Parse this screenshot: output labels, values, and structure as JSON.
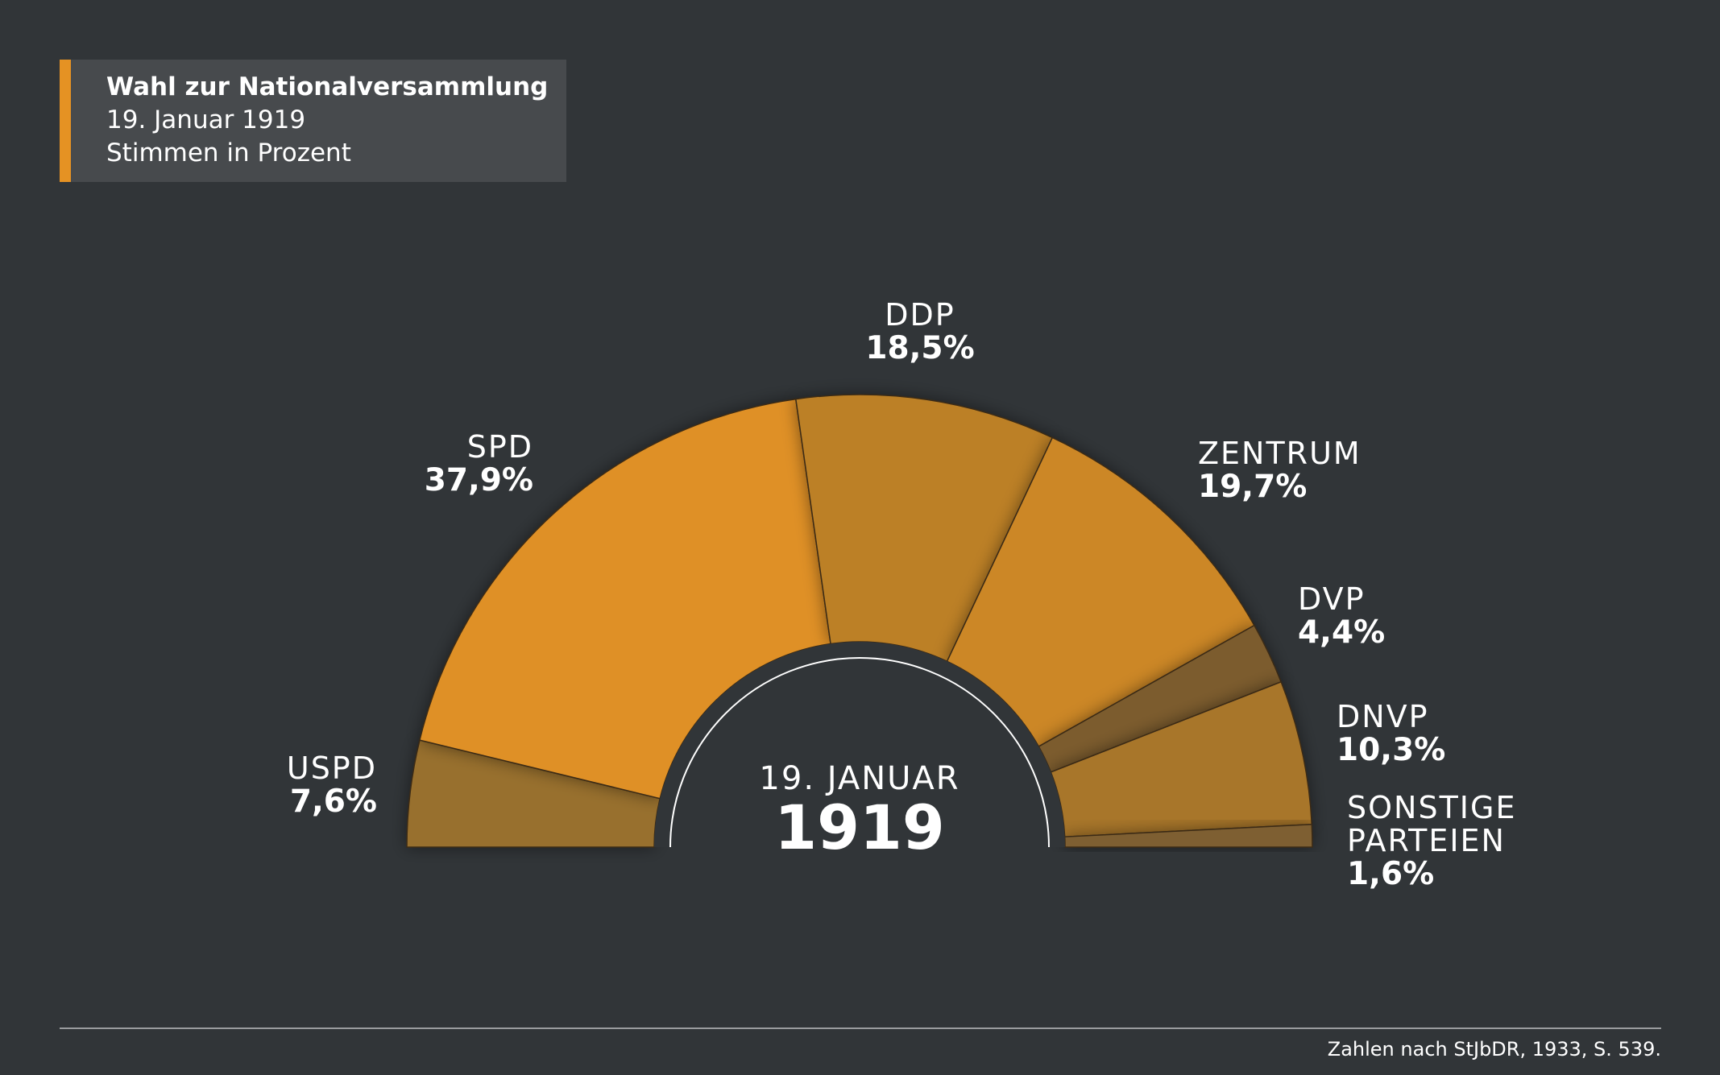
{
  "header": {
    "title": "Wahl zur Nationalversammlung",
    "subtitle_date": "19. Januar 1919",
    "subtitle_unit": "Stimmen in Prozent"
  },
  "center": {
    "date_label": "19. JANUAR",
    "year": "1919"
  },
  "footer": {
    "source": "Zahlen nach StJbDR, 1933, S. 539."
  },
  "colors": {
    "background": "#313538",
    "title_box": "#474a4d",
    "accent": "#e59223"
  },
  "chart_data": {
    "type": "pie",
    "layout": "semicircle",
    "unit": "%",
    "categories": [
      "USPD",
      "SPD",
      "DDP",
      "ZENTRUM",
      "DVP",
      "DNVP",
      "SONSTIGE PARTEIEN"
    ],
    "label_lines": [
      [
        "USPD"
      ],
      [
        "SPD"
      ],
      [
        "DDP"
      ],
      [
        "ZENTRUM"
      ],
      [
        "DVP"
      ],
      [
        "DNVP"
      ],
      [
        "SONSTIGE",
        "PARTEIEN"
      ]
    ],
    "values": [
      7.6,
      37.9,
      18.5,
      19.7,
      4.4,
      10.3,
      1.6
    ],
    "value_labels": [
      "7,6%",
      "37,9%",
      "18,5%",
      "19,7%",
      "4,4%",
      "10,3%",
      "1,6%"
    ],
    "colors": [
      "#98702e",
      "#df9025",
      "#bc8028",
      "#cc8727",
      "#7b5c2f",
      "#a8762c",
      "#7e5f30"
    ]
  }
}
